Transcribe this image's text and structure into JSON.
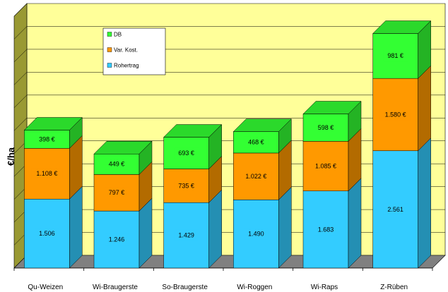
{
  "chart_data": {
    "type": "bar",
    "stacked": true,
    "three_d": true,
    "ylabel": "€/ha",
    "categories": [
      "Qu-Weizen",
      "Wi-Braugerste",
      "So-Braugerste",
      "Wi-Roggen",
      "Wi-Raps",
      "Z-Rüben"
    ],
    "series": [
      {
        "name": "Rohertrag",
        "color": "#33ccff",
        "values": [
          1506,
          1246,
          1429,
          1490,
          1683,
          2561
        ],
        "labels": [
          "1.506",
          "1.246",
          "1.429",
          "1.490",
          "1.683",
          "2.561"
        ]
      },
      {
        "name": "Var. Kost.",
        "color": "#ff9900",
        "values": [
          1108,
          797,
          735,
          1022,
          1085,
          1580
        ],
        "labels": [
          "1.108 €",
          "797 €",
          "735 €",
          "1.022 €",
          "1.085 €",
          "1.580 €"
        ]
      },
      {
        "name": "DB",
        "color": "#33ff33",
        "values": [
          398,
          449,
          693,
          468,
          598,
          981
        ],
        "labels": [
          "398 €",
          "449 €",
          "693 €",
          "468 €",
          "598 €",
          "981 €"
        ]
      }
    ],
    "legend_order": [
      "DB",
      "Var. Kost.",
      "Rohertrag"
    ],
    "legend_position": "top-left",
    "ylim": [
      0,
      5500
    ],
    "grid": true,
    "wall_color": "#ffff99",
    "side_wall_color": "#999933",
    "floor_color": "#808080"
  }
}
